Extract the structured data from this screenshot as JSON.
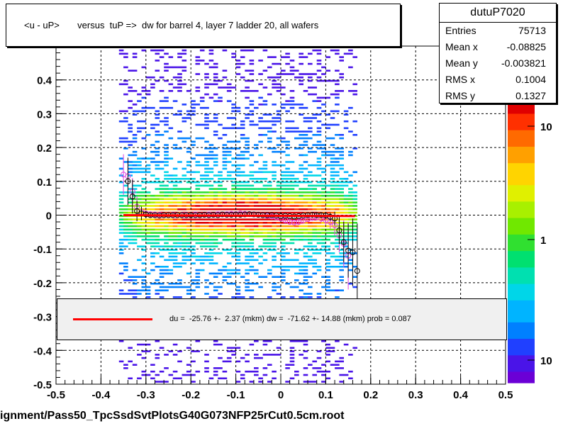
{
  "title": "<u - uP>       versus  tuP =>  dw for barrel 4, layer 7 ladder 20, all wafers",
  "stats": {
    "name": "dutuP7020",
    "rows": [
      {
        "label": "Entries",
        "value": "75713"
      },
      {
        "label": "Mean x",
        "value": "-0.08825"
      },
      {
        "label": "Mean y",
        "value": "-0.003821"
      },
      {
        "label": "RMS x",
        "value": "0.1004"
      },
      {
        "label": "RMS y",
        "value": "0.1327"
      }
    ]
  },
  "legend": {
    "text": "du =  -25.76 +-  2.37 (mkm) dw =  -71.62 +- 14.88 (mkm) prob = 0.087",
    "line_color": "#ff0000"
  },
  "footer": "ignment/Pass50_TpcSsdSvtPlotsG40G073NFP25rCut0.5cm.root",
  "chart_data": {
    "type": "heatmap",
    "xlim": [
      -0.5,
      0.5
    ],
    "ylim": [
      -0.5,
      0.5
    ],
    "x_ticks": [
      "-0.5",
      "-0.4",
      "-0.3",
      "-0.2",
      "-0.1",
      "0",
      "0.1",
      "0.2",
      "0.3",
      "0.4",
      "0.5"
    ],
    "y_ticks": [
      "-0.5",
      "-0.4",
      "-0.3",
      "-0.2",
      "-0.1",
      "0",
      "0.1",
      "0.2",
      "0.3",
      "0.4"
    ],
    "grid": true,
    "colorbar_labels": [
      {
        "label": "10",
        "value": 10
      },
      {
        "label": "1",
        "value": 1
      },
      {
        "label": "10",
        "value": 0.1
      }
    ],
    "fit_line": {
      "x": [
        -0.35,
        0.165
      ],
      "y": [
        0.0,
        -0.003
      ],
      "color": "#ff0000"
    },
    "profile_black": {
      "x": [
        -0.34,
        -0.33,
        -0.32,
        -0.31,
        -0.3,
        -0.29,
        -0.28,
        -0.27,
        -0.26,
        -0.25,
        -0.24,
        -0.23,
        -0.22,
        -0.21,
        -0.2,
        -0.19,
        -0.18,
        -0.17,
        -0.16,
        -0.15,
        -0.14,
        -0.13,
        -0.12,
        -0.11,
        -0.1,
        -0.09,
        -0.08,
        -0.07,
        -0.06,
        -0.05,
        -0.04,
        -0.03,
        -0.02,
        -0.01,
        0.0,
        0.01,
        0.02,
        0.03,
        0.04,
        0.05,
        0.06,
        0.07,
        0.08,
        0.09,
        0.1,
        0.11,
        0.12,
        0.13,
        0.14,
        0.15,
        0.16,
        0.17
      ],
      "y": [
        0.1,
        0.055,
        0.012,
        0.005,
        0.002,
        0.0,
        0.0,
        -0.001,
        0.0,
        0.0,
        0.0,
        0.0,
        0.0,
        0.0,
        0.0,
        0.0,
        0.0,
        0.001,
        0.0,
        0.001,
        0.0,
        0.002,
        0.001,
        0.001,
        0.002,
        0.001,
        0.002,
        0.003,
        0.002,
        0.001,
        0.0,
        0.0,
        0.0,
        -0.001,
        -0.003,
        -0.002,
        -0.003,
        -0.004,
        -0.003,
        -0.001,
        0.0,
        0.001,
        0.0,
        0.0,
        -0.001,
        -0.005,
        -0.01,
        -0.045,
        -0.08,
        -0.105,
        -0.11,
        -0.165
      ],
      "err": [
        0.07,
        0.05,
        0.03,
        0.02,
        0.01,
        0.006,
        0.005,
        0.004,
        0.004,
        0.004,
        0.004,
        0.003,
        0.003,
        0.003,
        0.003,
        0.003,
        0.003,
        0.003,
        0.003,
        0.003,
        0.003,
        0.003,
        0.003,
        0.003,
        0.003,
        0.003,
        0.003,
        0.003,
        0.003,
        0.003,
        0.003,
        0.003,
        0.003,
        0.003,
        0.004,
        0.004,
        0.004,
        0.004,
        0.004,
        0.004,
        0.005,
        0.005,
        0.006,
        0.008,
        0.01,
        0.012,
        0.02,
        0.04,
        0.06,
        0.08,
        0.1,
        0.14
      ]
    },
    "profile_magenta": {
      "x": [
        -0.35,
        -0.34,
        -0.33,
        -0.32,
        -0.31,
        -0.3,
        -0.29,
        -0.28,
        -0.27,
        -0.26,
        -0.25,
        -0.24,
        -0.23,
        -0.22,
        -0.21,
        -0.2,
        -0.19,
        -0.18,
        -0.17,
        -0.16,
        -0.15,
        -0.14,
        -0.13,
        -0.12,
        -0.11,
        -0.1,
        -0.09,
        -0.08,
        -0.07,
        -0.06,
        -0.05,
        -0.04,
        -0.03,
        -0.02,
        -0.01,
        0.0,
        0.01,
        0.02,
        0.03,
        0.04,
        0.05,
        0.06,
        0.07,
        0.08,
        0.09,
        0.1,
        0.11,
        0.12,
        0.13,
        0.14,
        0.15
      ],
      "y": [
        0.12,
        0.115,
        0.07,
        0.025,
        0.01,
        0.005,
        0.003,
        0.002,
        0.001,
        0.0,
        0.0,
        0.001,
        0.0,
        0.001,
        0.001,
        0.0,
        0.002,
        0.0,
        0.001,
        0.002,
        0.001,
        0.003,
        0.002,
        0.003,
        0.004,
        0.003,
        0.005,
        0.004,
        0.003,
        0.002,
        0.001,
        0.0,
        -0.002,
        -0.004,
        -0.006,
        -0.01,
        -0.015,
        -0.02,
        -0.022,
        -0.02,
        -0.016,
        -0.012,
        -0.008,
        -0.006,
        -0.01,
        -0.015,
        -0.02,
        -0.03,
        -0.06,
        -0.085,
        -0.12
      ],
      "err": [
        0.06,
        0.05,
        0.04,
        0.03,
        0.015,
        0.008,
        0.006,
        0.005,
        0.005,
        0.004,
        0.004,
        0.004,
        0.004,
        0.004,
        0.004,
        0.004,
        0.004,
        0.004,
        0.004,
        0.004,
        0.004,
        0.004,
        0.004,
        0.004,
        0.004,
        0.004,
        0.004,
        0.004,
        0.004,
        0.004,
        0.004,
        0.004,
        0.004,
        0.005,
        0.005,
        0.005,
        0.006,
        0.006,
        0.006,
        0.006,
        0.006,
        0.007,
        0.008,
        0.01,
        0.012,
        0.015,
        0.02,
        0.03,
        0.05,
        0.07,
        0.1
      ]
    }
  }
}
